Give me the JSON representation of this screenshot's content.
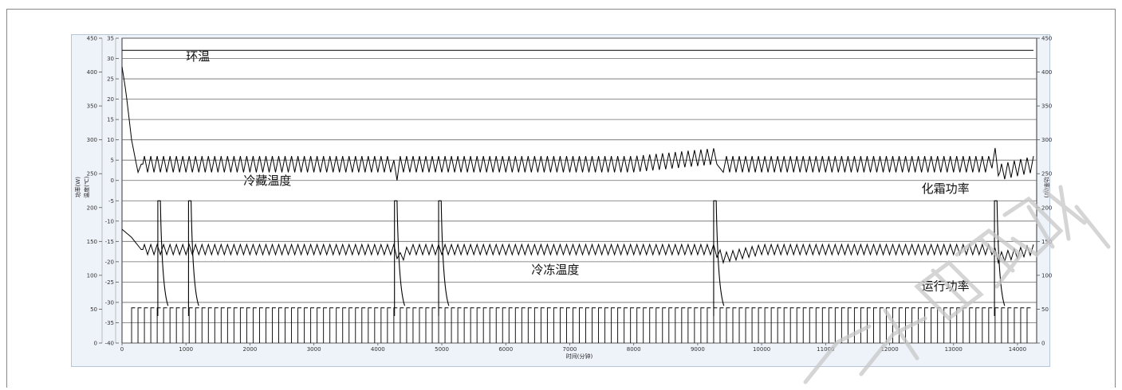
{
  "chart_data": {
    "type": "line",
    "xlabel": "时间(分钟)",
    "ylabel_left_power": "功率(W)",
    "ylabel_left_temp": "温度(℃)",
    "ylabel_right": "功率(W)",
    "x_ticks": [
      0,
      1000,
      2000,
      3000,
      4000,
      5000,
      6000,
      7000,
      8000,
      9000,
      10000,
      11000,
      12000,
      13000,
      14000
    ],
    "xlim": [
      0,
      14300
    ],
    "power_ticks": [
      0,
      50,
      100,
      150,
      200,
      250,
      300,
      350,
      400,
      450
    ],
    "temp_ticks": [
      35,
      30,
      25,
      20,
      15,
      10,
      5,
      0,
      -5,
      -10,
      -15,
      -20,
      -25,
      -30,
      -35,
      -40
    ],
    "right_ticks": [
      0,
      50,
      100,
      150,
      200,
      250,
      300,
      350,
      400,
      450
    ],
    "power_lim": [
      0,
      450
    ],
    "temp_lim": [
      -40,
      35
    ],
    "grid": true,
    "annotations": [
      "环温",
      "冷藏温度",
      "化霜功率",
      "冷冻温度",
      "运行功率"
    ],
    "series": [
      {
        "name": "环温",
        "axis": "temp",
        "color": "#000000",
        "x": [
          0,
          500,
          1500,
          3000,
          5000,
          7000,
          9000,
          11000,
          13000,
          14250
        ],
        "y": [
          32,
          32,
          32,
          32,
          32,
          32,
          32,
          32,
          32,
          32
        ]
      },
      {
        "name": "冷藏温度",
        "axis": "temp",
        "color": "#000000",
        "x": [
          0,
          60,
          150,
          250,
          300,
          500,
          1000,
          2000,
          4200,
          4300,
          4350,
          5000,
          6000,
          8000,
          9300,
          9350,
          9400,
          10000,
          12000,
          13550,
          13650,
          13720,
          14250
        ],
        "y": [
          28,
          22,
          10,
          2,
          4,
          4,
          4,
          4,
          4,
          2,
          4,
          4,
          4,
          4,
          6,
          1,
          4,
          4,
          4,
          4,
          6,
          2,
          4
        ],
        "cycle_period": 100,
        "cycle_low": 2,
        "cycle_high": 6
      },
      {
        "name": "冷冻温度",
        "axis": "temp",
        "color": "#000000",
        "x": [
          0,
          150,
          300,
          600,
          1100,
          1500,
          3000,
          4250,
          4350,
          4500,
          5000,
          7000,
          9250,
          9400,
          10000,
          12000,
          13600,
          13700,
          14250
        ],
        "y": [
          -12,
          -14,
          -17,
          -17,
          -17,
          -17,
          -17,
          -17,
          -19,
          -17,
          -17,
          -17,
          -17,
          -19,
          -17,
          -17,
          -17,
          -19,
          -17
        ],
        "cycle_period": 100,
        "cycle_low": -18.5,
        "cycle_high": -16
      },
      {
        "name": "化霜功率",
        "axis": "power",
        "color": "#000000",
        "x": [
          560,
          1040,
          4260,
          4950,
          9250,
          13640
        ],
        "y": [
          210,
          210,
          210,
          210,
          210,
          210
        ]
      },
      {
        "name": "运行功率",
        "axis": "power",
        "color": "#000000",
        "x": [
          0,
          14250
        ],
        "y": [
          52,
          52
        ],
        "cycle_period": 100,
        "cycle_low": 0,
        "cycle_high": 52
      }
    ]
  }
}
